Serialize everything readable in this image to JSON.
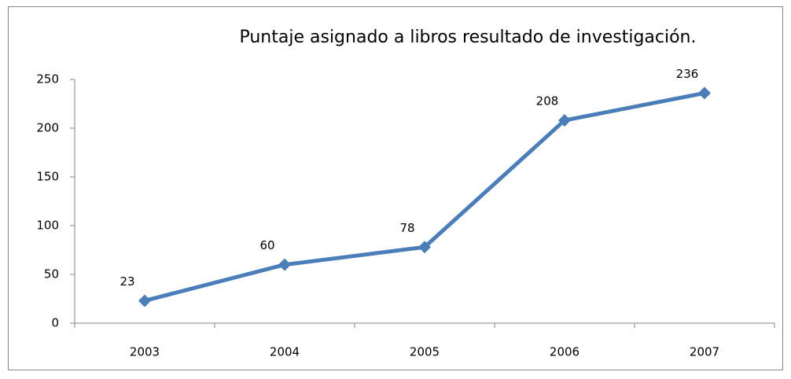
{
  "chart_data": {
    "type": "line",
    "title": "Puntaje asignado a libros resultado de investigación.",
    "categories": [
      "2003",
      "2004",
      "2005",
      "2006",
      "2007"
    ],
    "series": [
      {
        "name": "Puntaje",
        "color": "#4a7ebb",
        "values": [
          23,
          60,
          78,
          208,
          236
        ]
      }
    ],
    "ylim": [
      0,
      250
    ],
    "yticks": [
      0,
      50,
      100,
      150,
      200,
      250
    ],
    "grid": false,
    "legend": false,
    "data_labels": true
  }
}
